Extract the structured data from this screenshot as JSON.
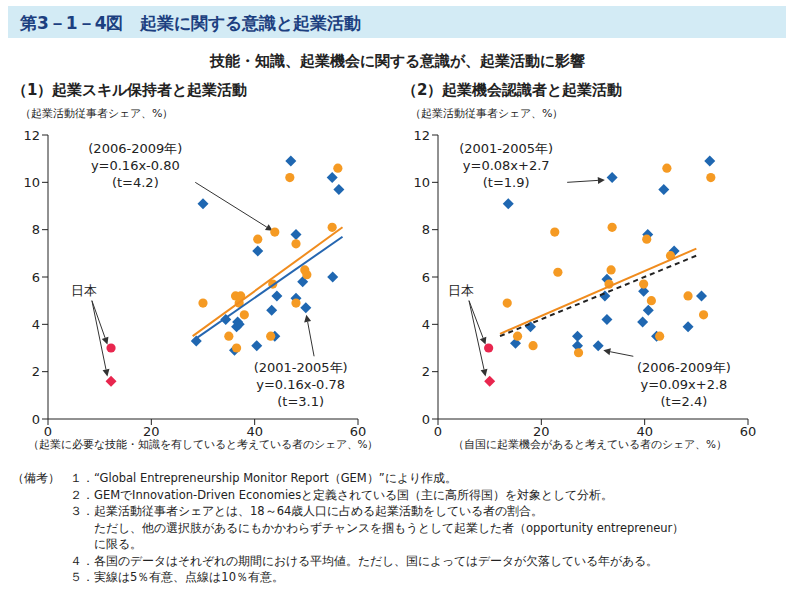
{
  "header": {
    "title": "第3－1－4図　起業に関する意識と起業活動",
    "subtitle": "技能・知識、起業機会に関する意識が、起業活動に影響"
  },
  "chart_data": [
    {
      "type": "scatter",
      "title": "（1）起業スキル保持者と起業活動",
      "y_label": "（起業活動従事者シェア、%）",
      "x_label": "（起業に必要な技能・知識を有していると考えている者のシェア、%）",
      "xlim": [
        0,
        60
      ],
      "xticks": [
        0,
        20,
        40,
        60
      ],
      "ylim": [
        0,
        12
      ],
      "yticks": [
        0,
        2,
        4,
        6,
        8,
        10,
        12
      ],
      "grid": false,
      "series": [
        {
          "type": "scatter",
          "marker": "diamond",
          "color": "#1f67b1",
          "x": [
            12.2,
            30,
            47,
            55,
            56.3,
            48,
            40.6,
            44.3,
            55.1,
            49.3,
            48,
            49.9,
            43.3,
            34.4,
            36.5,
            36.7,
            37,
            40.4,
            36.1,
            43.9,
            28.7
          ],
          "y": [
            1.6,
            9.1,
            10.9,
            10.2,
            9.7,
            7.8,
            7.1,
            5.2,
            6,
            5.8,
            5.1,
            4.7,
            4.6,
            4.2,
            3.9,
            4.1,
            4,
            3.1,
            2.9,
            3.5,
            3.3
          ],
          "colors": [
            "#e8264e",
            "#1f67b1",
            "#1f67b1",
            "#1f67b1",
            "#1f67b1",
            "#1f67b1",
            "#1f67b1",
            "#1f67b1",
            "#1f67b1",
            "#1f67b1",
            "#1f67b1",
            "#1f67b1",
            "#1f67b1",
            "#1f67b1",
            "#1f67b1",
            "#1f67b1",
            "#1f67b1",
            "#1f67b1",
            "#1f67b1",
            "#1f67b1",
            "#1f67b1"
          ]
        },
        {
          "type": "scatter",
          "marker": "circle",
          "color": "#f59a23",
          "x": [
            12.2,
            30,
            46.8,
            56.1,
            55,
            43.9,
            40.6,
            48,
            49.7,
            50.1,
            48,
            36.3,
            37.3,
            37,
            43.5,
            38,
            35,
            43.1,
            36.5
          ],
          "y": [
            3.0,
            4.9,
            10.2,
            10.6,
            8.1,
            7.9,
            7.6,
            7.4,
            6.3,
            6.1,
            4.9,
            5.2,
            5.2,
            4.9,
            5.7,
            4.4,
            3.5,
            3.5,
            3.0
          ],
          "colors": [
            "#e8264e",
            "#f59a23",
            "#f59a23",
            "#f59a23",
            "#f59a23",
            "#f59a23",
            "#f59a23",
            "#f59a23",
            "#f59a23",
            "#f59a23",
            "#f59a23",
            "#f59a23",
            "#f59a23",
            "#f59a23",
            "#f59a23",
            "#f59a23",
            "#f59a23",
            "#f59a23",
            "#f59a23"
          ]
        },
        {
          "type": "line",
          "line_style": "solid",
          "color": "#f08c1e",
          "x": [
            28,
            57
          ],
          "y": [
            3.5,
            8.1
          ]
        },
        {
          "type": "line",
          "line_style": "solid",
          "color": "#2566b0",
          "x": [
            28,
            57
          ],
          "y": [
            3.3,
            7.7
          ]
        }
      ],
      "annotations": [
        {
          "text": [
            "(2006-2009年)",
            "y=0.16x-0.80",
            "(t=4.2)"
          ],
          "x": 16.9,
          "y": 10.7,
          "arrows": [
            {
              "from": [
                28.5,
                10
              ],
              "to": [
                43.5,
                7.95
              ]
            }
          ]
        },
        {
          "text": [
            "(2001-2005年)",
            "y=0.16x-0.78",
            "(t=3.1)"
          ],
          "x": 48.9,
          "y": 1.45,
          "arrows": [
            {
              "from": [
                51.5,
                2.65
              ],
              "to": [
                50,
                4.4
              ]
            }
          ]
        },
        {
          "text": [
            "日本"
          ],
          "x": 7,
          "y": 5.4,
          "arrows": [
            {
              "from": [
                8.5,
                5
              ],
              "to": [
                11.5,
                3.15
              ]
            },
            {
              "from": [
                8.5,
                5
              ],
              "to": [
                11.5,
                1.8
              ]
            }
          ]
        }
      ]
    },
    {
      "type": "scatter",
      "title": "（2）起業機会認識者と起業活動",
      "y_label": "（起業活動従事者シェア、%）",
      "x_label": "（自国に起業機会があると考えている者のシェア、%）",
      "xlim": [
        0,
        60
      ],
      "xticks": [
        0,
        20,
        40,
        60
      ],
      "ylim": [
        0,
        12
      ],
      "yticks": [
        0,
        2,
        4,
        6,
        8,
        10,
        12
      ],
      "grid": false,
      "series": [
        {
          "type": "scatter",
          "marker": "diamond",
          "color": "#1f67b1",
          "x": [
            10,
            13.6,
            33.7,
            52.6,
            40.6,
            45.7,
            43.7,
            32.7,
            32.3,
            51,
            39.8,
            32.7,
            39.6,
            48.4,
            17.9,
            27,
            27,
            31,
            42.3,
            15,
            40.7
          ],
          "y": [
            1.6,
            9.1,
            10.2,
            10.9,
            7.8,
            7.1,
            9.7,
            5.9,
            5.2,
            5.2,
            5.4,
            4.2,
            4.1,
            3.9,
            3.9,
            3.5,
            3.1,
            3.1,
            3.5,
            3.2,
            4.6
          ],
          "colors": [
            "#e8264e",
            "#1f67b1",
            "#1f67b1",
            "#1f67b1",
            "#1f67b1",
            "#1f67b1",
            "#1f67b1",
            "#1f67b1",
            "#1f67b1",
            "#1f67b1",
            "#1f67b1",
            "#1f67b1",
            "#1f67b1",
            "#1f67b1",
            "#1f67b1",
            "#1f67b1",
            "#1f67b1",
            "#1f67b1",
            "#1f67b1",
            "#1f67b1",
            "#1f67b1"
          ]
        },
        {
          "type": "scatter",
          "marker": "circle",
          "color": "#f59a23",
          "x": [
            9.8,
            22.6,
            23.2,
            33.5,
            33.7,
            40.4,
            44.3,
            52.8,
            13.4,
            15.4,
            18.4,
            27.2,
            33.1,
            39.8,
            41.3,
            42.9,
            48.4,
            51.4,
            45
          ],
          "y": [
            3.0,
            7.9,
            6.2,
            6.3,
            8.1,
            7.6,
            10.6,
            10.2,
            4.9,
            3.5,
            3.1,
            2.8,
            5.7,
            5.7,
            5.0,
            3.5,
            5.2,
            4.4,
            6.9
          ],
          "colors": [
            "#e8264e",
            "#f59a23",
            "#f59a23",
            "#f59a23",
            "#f59a23",
            "#f59a23",
            "#f59a23",
            "#f59a23",
            "#f59a23",
            "#f59a23",
            "#f59a23",
            "#f59a23",
            "#f59a23",
            "#f59a23",
            "#f59a23",
            "#f59a23",
            "#f59a23",
            "#f59a23",
            "#f59a23"
          ]
        },
        {
          "type": "line",
          "line_style": "solid",
          "color": "#f08c1e",
          "x": [
            12,
            50
          ],
          "y": [
            3.6,
            7.2
          ]
        },
        {
          "type": "line",
          "line_style": "dashed",
          "color": "#222222",
          "x": [
            12,
            50
          ],
          "y": [
            3.5,
            6.9
          ]
        }
      ],
      "annotations": [
        {
          "text": [
            "(2001-2005年)",
            "y=0.08x+2.7",
            "(t=1.9)"
          ],
          "x": 13.2,
          "y": 10.7,
          "arrows": [
            {
              "from": [
                25,
                10
              ],
              "to": [
                32.3,
                10.1
              ]
            }
          ]
        },
        {
          "text": [
            "(2006-2009年)",
            "y=0.09x+2.8",
            "(t=2.4)"
          ],
          "x": 47.6,
          "y": 1.45,
          "arrows": [
            {
              "from": [
                37.8,
                2.65
              ],
              "to": [
                32,
                2.9
              ]
            }
          ]
        },
        {
          "text": [
            "日本"
          ],
          "x": 4.5,
          "y": 5.4,
          "arrows": [
            {
              "from": [
                6,
                5
              ],
              "to": [
                9.2,
                3.15
              ]
            },
            {
              "from": [
                6,
                5
              ],
              "to": [
                9.2,
                1.8
              ]
            }
          ]
        }
      ]
    }
  ],
  "notes": {
    "label": "（備考）",
    "items": [
      "１．“Global Entrepreneurship Monitor Report（GEM）”により作成。",
      "２．GEMでInnovation-Driven Economiesと定義されている国（主に高所得国）を対象として分析。",
      "３．起業活動従事者シェアとは、18～64歳人口に占める起業活動をしている者の割合。",
      "ただし、他の選択肢があるにもかかわらずチャンスを掴もうとして起業した者（opportunity entrepreneur）",
      "に限る。",
      "４．各国のデータはそれぞれの期間における平均値。ただし、国によってはデータが欠落している年がある。",
      "５．実線は5％有意、点線は10％有意。"
    ]
  }
}
